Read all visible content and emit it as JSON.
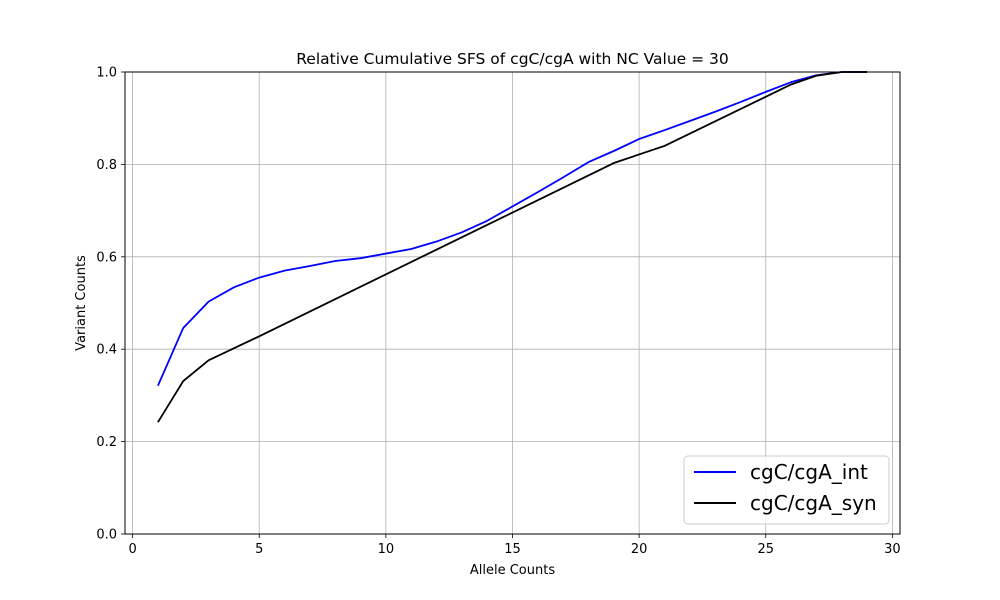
{
  "chart_data": {
    "type": "line",
    "title": "Relative Cumulative SFS of cgC/cgA with NC Value = 30",
    "xlabel": "Allele Counts",
    "ylabel": "Variant Counts",
    "xlim": [
      -0.3,
      30.3
    ],
    "ylim": [
      0.0,
      1.0
    ],
    "xticks": [
      0,
      5,
      10,
      15,
      20,
      25,
      30
    ],
    "yticks": [
      0.0,
      0.2,
      0.4,
      0.6,
      0.8,
      1.0
    ],
    "xtick_labels": [
      "0",
      "5",
      "10",
      "15",
      "20",
      "25",
      "30"
    ],
    "ytick_labels": [
      "0.0",
      "0.2",
      "0.4",
      "0.6",
      "0.8",
      "1.0"
    ],
    "grid": true,
    "legend_position": "lower-right",
    "series": [
      {
        "name": "cgC/cgA_int",
        "color": "#0000ff",
        "x": [
          1,
          2,
          3,
          4,
          5,
          6,
          7,
          8,
          9,
          10,
          11,
          12,
          13,
          14,
          15,
          16,
          17,
          18,
          19,
          20,
          21,
          22,
          23,
          24,
          25,
          26,
          27,
          28,
          29
        ],
        "y": [
          0.321,
          0.446,
          0.503,
          0.534,
          0.555,
          0.57,
          0.58,
          0.591,
          0.597,
          0.607,
          0.617,
          0.633,
          0.653,
          0.678,
          0.709,
          0.74,
          0.772,
          0.805,
          0.829,
          0.855,
          0.874,
          0.894,
          0.914,
          0.935,
          0.957,
          0.978,
          0.993,
          1.0,
          1.0
        ]
      },
      {
        "name": "cgC/cgA_syn",
        "color": "#000000",
        "x": [
          1,
          2,
          3,
          5,
          19,
          21,
          26,
          27,
          28,
          29
        ],
        "y": [
          0.242,
          0.331,
          0.376,
          0.428,
          0.803,
          0.84,
          0.973,
          0.992,
          1.0,
          1.0
        ]
      }
    ]
  }
}
